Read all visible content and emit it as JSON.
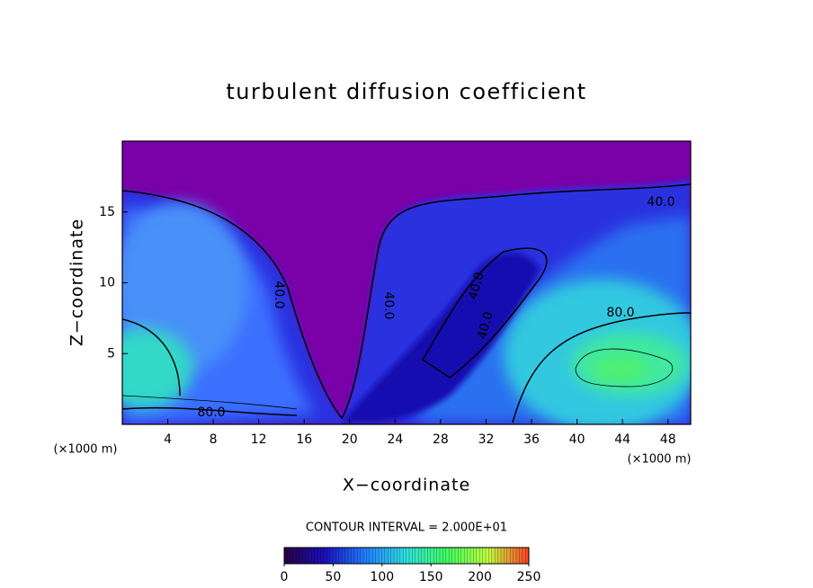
{
  "chart_data": {
    "type": "contour",
    "title": "turbulent diffusion coefficient",
    "x_label": "X−coordinate",
    "y_label": "Z−coordinate",
    "x_unit": "(×1000 m)",
    "y_unit": "(×1000 m)",
    "xlim": [
      0,
      50
    ],
    "xticks": [
      4,
      8,
      12,
      16,
      20,
      24,
      28,
      32,
      36,
      40,
      44,
      48
    ],
    "ylim": [
      0,
      20
    ],
    "yticks": [
      5,
      10,
      15
    ],
    "contour_labels": [
      {
        "value": 40,
        "label": "40.0"
      },
      {
        "value": 80,
        "label": "80.0"
      },
      {
        "value": 80,
        "label": "80.0"
      },
      {
        "value": 40,
        "label": "40.0"
      },
      {
        "value": 40,
        "label": "40.0"
      },
      {
        "value": 40,
        "label": "40.0"
      },
      {
        "value": 40,
        "label": "40.0"
      }
    ],
    "contour_interval_text": "CONTOUR INTERVAL = 2.000E+01",
    "colorbar": {
      "lim": [
        0,
        250
      ],
      "ticks": [
        0,
        50,
        100,
        150,
        200,
        250
      ],
      "colors": [
        "#2a0040",
        "#1a10c0",
        "#2080ff",
        "#30e0e0",
        "#40ff60",
        "#c0ff40",
        "#ff4020"
      ]
    }
  }
}
